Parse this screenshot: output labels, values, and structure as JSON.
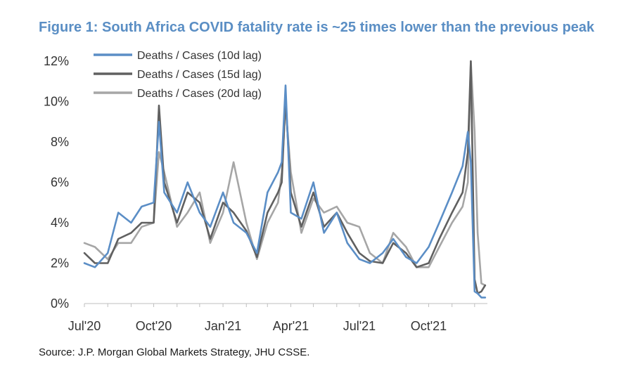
{
  "title": "Figure 1: South Africa COVID fatality rate is ~25 times lower than the previous peak",
  "source": "Source: J.P. Morgan Global Markets Strategy, JHU CSSE.",
  "chart_data": {
    "type": "line",
    "title": "Figure 1: South Africa COVID fatality rate is ~25 times lower than the previous peak",
    "xlabel": "",
    "ylabel": "",
    "x_ticks": [
      "Jul'20",
      "Oct'20",
      "Jan'21",
      "Apr'21",
      "Jul'21",
      "Oct'21"
    ],
    "y_ticks": [
      "0%",
      "2%",
      "4%",
      "6%",
      "8%",
      "10%",
      "12%"
    ],
    "ylim": [
      0,
      12
    ],
    "y_unit": "%",
    "grid": false,
    "legend_position": "top-left",
    "x": [
      "2020-07-01",
      "2020-07-15",
      "2020-08-01",
      "2020-08-15",
      "2020-09-01",
      "2020-09-15",
      "2020-10-01",
      "2020-10-08",
      "2020-10-15",
      "2020-11-01",
      "2020-11-15",
      "2020-12-01",
      "2020-12-15",
      "2021-01-01",
      "2021-01-15",
      "2021-02-01",
      "2021-02-15",
      "2021-03-01",
      "2021-03-15",
      "2021-03-20",
      "2021-03-25",
      "2021-04-01",
      "2021-04-15",
      "2021-05-01",
      "2021-05-15",
      "2021-06-01",
      "2021-06-15",
      "2021-07-01",
      "2021-07-15",
      "2021-08-01",
      "2021-08-15",
      "2021-09-01",
      "2021-09-15",
      "2021-10-01",
      "2021-10-15",
      "2021-11-01",
      "2021-11-15",
      "2021-11-22",
      "2021-11-26",
      "2021-12-01",
      "2021-12-05",
      "2021-12-10",
      "2021-12-15"
    ],
    "series": [
      {
        "name": "Deaths / Cases (10d lag)",
        "color": "#5b8ec6",
        "values": [
          2.0,
          1.8,
          2.5,
          4.5,
          4.0,
          4.8,
          5.0,
          9.0,
          5.5,
          4.5,
          6.0,
          4.5,
          3.8,
          5.5,
          4.0,
          3.5,
          2.5,
          5.5,
          6.5,
          7.0,
          10.8,
          4.5,
          4.2,
          6.0,
          3.5,
          4.5,
          3.0,
          2.2,
          2.0,
          2.5,
          3.2,
          2.3,
          2.0,
          2.8,
          4.0,
          5.5,
          6.8,
          8.5,
          7.0,
          0.6,
          0.5,
          0.3,
          0.3
        ]
      },
      {
        "name": "Deaths / Cases (15d lag)",
        "color": "#606060",
        "values": [
          2.5,
          2.0,
          2.0,
          3.2,
          3.5,
          4.0,
          4.0,
          9.8,
          6.0,
          4.0,
          5.5,
          5.0,
          3.2,
          5.0,
          4.5,
          3.6,
          2.3,
          4.5,
          5.5,
          6.0,
          10.2,
          5.5,
          3.8,
          5.5,
          3.8,
          4.5,
          3.5,
          2.5,
          2.1,
          2.0,
          3.0,
          2.5,
          1.8,
          2.0,
          3.2,
          4.5,
          5.5,
          7.5,
          12.0,
          1.2,
          0.5,
          0.6,
          0.9
        ]
      },
      {
        "name": "Deaths / Cases (20d lag)",
        "color": "#a6a6a6",
        "values": [
          3.0,
          2.8,
          2.2,
          3.0,
          3.0,
          3.8,
          4.0,
          7.5,
          6.5,
          3.8,
          4.5,
          5.5,
          3.0,
          4.5,
          7.0,
          4.0,
          2.2,
          4.0,
          5.0,
          6.5,
          9.8,
          6.5,
          3.5,
          5.2,
          4.5,
          4.8,
          4.0,
          3.8,
          2.5,
          2.0,
          3.5,
          2.8,
          1.8,
          1.8,
          2.8,
          4.0,
          4.8,
          6.0,
          12.0,
          8.5,
          3.5,
          1.0,
          0.9
        ]
      }
    ]
  }
}
